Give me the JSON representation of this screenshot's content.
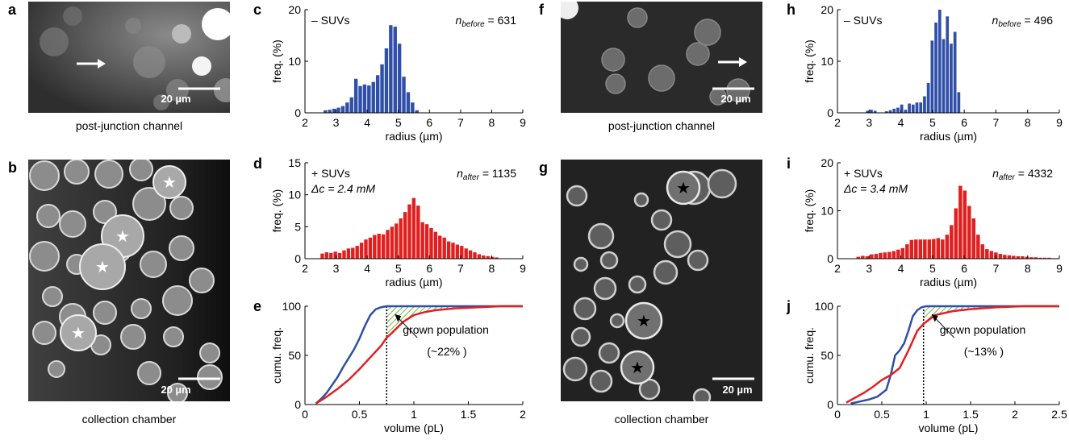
{
  "panel_letters": {
    "a": "a",
    "b": "b",
    "c": "c",
    "d": "d",
    "e": "e",
    "f": "f",
    "g": "g",
    "h": "h",
    "i": "i",
    "j": "j"
  },
  "captions": {
    "a": "post-junction channel",
    "b": "collection chamber",
    "f": "post-junction channel",
    "g": "collection chamber"
  },
  "scale_bar_label": "20 µm",
  "colors": {
    "blue": "#2f4fa8",
    "red": "#e02020",
    "hatch": "#7ab648"
  },
  "chart_data": [
    {
      "panel": "c",
      "type": "bar",
      "annot_left": "– SUVs",
      "annot_right_n": "n",
      "annot_right_sub": "before",
      "annot_right_val": " = 631",
      "xlabel": "radius (µm)",
      "ylabel": "freq. (%)",
      "xlim": [
        2,
        9
      ],
      "ylim": [
        0,
        20
      ],
      "xticks": [
        2,
        3,
        4,
        5,
        6,
        7,
        8,
        9
      ],
      "yticks": [
        0,
        10,
        20
      ],
      "bin_width": 0.14,
      "color": "#2f4fa8",
      "x": [
        2.6,
        2.74,
        2.88,
        3.02,
        3.16,
        3.3,
        3.44,
        3.58,
        3.72,
        3.86,
        4.0,
        4.14,
        4.28,
        4.42,
        4.56,
        4.7,
        4.84,
        4.98,
        5.12,
        5.26,
        5.4,
        5.54
      ],
      "values": [
        0.5,
        0.6,
        0.8,
        1.0,
        1.3,
        2.0,
        3.0,
        6.6,
        5.2,
        5.5,
        5.3,
        6.0,
        7.3,
        9.4,
        12.5,
        17.0,
        16.7,
        13.4,
        7.0,
        4.0,
        2.0,
        0.5
      ]
    },
    {
      "panel": "d",
      "type": "bar",
      "annot_left": "+ SUVs",
      "annot_left2": "Δc = 2.4 mM",
      "annot_right_n": "n",
      "annot_right_sub": "after",
      "annot_right_val": " = 1135",
      "xlabel": "radius (µm)",
      "ylabel": "freq. (%)",
      "xlim": [
        2,
        9
      ],
      "ylim": [
        0,
        15
      ],
      "xticks": [
        2,
        3,
        4,
        5,
        6,
        7,
        8,
        9
      ],
      "yticks": [
        0,
        5,
        10,
        15
      ],
      "bin_width": 0.14,
      "color": "#e02020",
      "x": [
        2.5,
        2.64,
        2.78,
        2.92,
        3.06,
        3.2,
        3.34,
        3.48,
        3.62,
        3.76,
        3.9,
        4.04,
        4.18,
        4.32,
        4.46,
        4.6,
        4.74,
        4.88,
        5.02,
        5.16,
        5.3,
        5.44,
        5.58,
        5.72,
        5.86,
        6.0,
        6.14,
        6.28,
        6.42,
        6.56,
        6.7,
        6.84,
        6.98,
        7.12,
        7.26,
        7.4,
        7.54,
        7.68,
        7.82,
        7.96,
        8.1
      ],
      "values": [
        0.8,
        1.0,
        0.9,
        1.1,
        0.9,
        1.3,
        1.6,
        1.7,
        2.0,
        2.5,
        3.0,
        3.3,
        3.7,
        3.9,
        3.8,
        4.5,
        5.0,
        5.5,
        6.3,
        7.3,
        8.5,
        9.5,
        8.3,
        5.7,
        5.4,
        4.8,
        4.2,
        3.6,
        3.3,
        2.7,
        2.5,
        2.2,
        2.0,
        1.6,
        1.3,
        1.0,
        0.7,
        0.5,
        0.4,
        0.3,
        0.2
      ]
    },
    {
      "panel": "e",
      "type": "line",
      "ylabel": "cumu. freq.",
      "xlabel": "volume (pL)",
      "xlim": [
        0,
        2
      ],
      "ylim": [
        0,
        100
      ],
      "xticks": [
        0,
        0.5,
        1,
        1.5,
        2
      ],
      "xticklabels": [
        "0",
        "0.5",
        "1",
        "1.5",
        "2"
      ],
      "yticks": [
        0,
        50,
        100
      ],
      "annotation": "grown population",
      "annotation2": "(~22% )",
      "dotted_x": 0.75,
      "series": [
        {
          "color": "#2f4fa8",
          "x": [
            0.1,
            0.15,
            0.2,
            0.25,
            0.3,
            0.35,
            0.4,
            0.45,
            0.5,
            0.55,
            0.6,
            0.65,
            0.7,
            0.75,
            0.8,
            2.0
          ],
          "y": [
            1,
            6,
            12,
            20,
            28,
            38,
            47,
            56,
            67,
            80,
            91,
            97,
            99,
            100,
            100,
            100
          ]
        },
        {
          "color": "#e02020",
          "x": [
            0.1,
            0.2,
            0.3,
            0.4,
            0.5,
            0.6,
            0.7,
            0.75,
            0.8,
            0.9,
            1.0,
            1.1,
            1.2,
            1.4,
            1.6,
            1.8,
            2.0
          ],
          "y": [
            1,
            8,
            16,
            25,
            36,
            48,
            60,
            68,
            73,
            84,
            91,
            94,
            96,
            98,
            99,
            100,
            100
          ]
        }
      ]
    },
    {
      "panel": "h",
      "type": "bar",
      "annot_left": "– SUVs",
      "annot_right_n": "n",
      "annot_right_sub": "before",
      "annot_right_val": " = 496",
      "xlabel": "radius (µm)",
      "ylabel": "freq. (%)",
      "xlim": [
        2,
        9
      ],
      "ylim": [
        0,
        20
      ],
      "xticks": [
        2,
        3,
        4,
        5,
        6,
        7,
        8,
        9
      ],
      "yticks": [
        0,
        10,
        20
      ],
      "bin_width": 0.12,
      "color": "#2f4fa8",
      "x": [
        2.9,
        3.02,
        3.14,
        3.5,
        3.62,
        3.74,
        3.86,
        3.98,
        4.1,
        4.22,
        4.34,
        4.46,
        4.58,
        4.7,
        4.82,
        4.94,
        5.06,
        5.18,
        5.3,
        5.42,
        5.54,
        5.66,
        5.78
      ],
      "values": [
        0.4,
        0.6,
        0.4,
        0.3,
        0.5,
        0.8,
        1.0,
        1.6,
        0.6,
        1.8,
        1.6,
        2.0,
        2.0,
        3.2,
        5.8,
        14.0,
        17.5,
        20.0,
        14.3,
        18.7,
        13.4,
        15.7,
        4.0
      ]
    },
    {
      "panel": "i",
      "type": "bar",
      "annot_left": "+ SUVs",
      "annot_left2": "Δc = 3.4 mM",
      "annot_right_n": "n",
      "annot_right_sub": "after",
      "annot_right_val": " = 4332",
      "xlabel": "radius (µm)",
      "ylabel": "freq. (%)",
      "xlim": [
        2,
        9
      ],
      "ylim": [
        0,
        20
      ],
      "xticks": [
        2,
        3,
        4,
        5,
        6,
        7,
        8,
        9
      ],
      "yticks": [
        0,
        10,
        20
      ],
      "bin_width": 0.14,
      "color": "#e02020",
      "x": [
        2.6,
        2.74,
        2.88,
        3.02,
        3.16,
        3.3,
        3.44,
        3.58,
        3.72,
        3.86,
        4.0,
        4.14,
        4.28,
        4.42,
        4.56,
        4.7,
        4.84,
        4.98,
        5.12,
        5.26,
        5.4,
        5.54,
        5.68,
        5.82,
        5.96,
        6.1,
        6.24,
        6.38,
        6.52,
        6.66,
        6.8,
        6.94,
        7.08,
        7.22,
        7.36,
        7.5,
        7.64,
        7.78,
        7.92,
        8.06,
        8.2,
        8.34,
        8.48,
        8.62,
        8.76
      ],
      "values": [
        0.4,
        0.6,
        0.5,
        0.9,
        1.0,
        1.2,
        1.3,
        1.4,
        1.6,
        1.9,
        2.2,
        3.0,
        3.9,
        4.0,
        4.0,
        4.0,
        4.0,
        4.1,
        4.3,
        4.0,
        5.0,
        7.0,
        10.5,
        15.2,
        14.2,
        11.0,
        8.4,
        5.0,
        3.0,
        2.0,
        1.6,
        1.3,
        1.0,
        0.8,
        0.7,
        0.6,
        0.5,
        0.5,
        0.4,
        0.3,
        0.3,
        0.2,
        0.2,
        0.2,
        0.1
      ]
    },
    {
      "panel": "j",
      "type": "line",
      "ylabel": "cumu. freq.",
      "xlabel": "volume (pL)",
      "xlim": [
        0,
        2.5
      ],
      "ylim": [
        0,
        100
      ],
      "xticks": [
        0,
        0.5,
        1,
        1.5,
        2,
        2.5
      ],
      "xticklabels": [
        "0",
        "0.5",
        "1",
        "1.5",
        "2",
        "2.5"
      ],
      "yticks": [
        0,
        50,
        100
      ],
      "annotation": "grown population",
      "annotation2": "(~13% )",
      "dotted_x": 0.97,
      "series": [
        {
          "color": "#2f4fa8",
          "x": [
            0.15,
            0.25,
            0.35,
            0.45,
            0.55,
            0.6,
            0.65,
            0.7,
            0.75,
            0.8,
            0.85,
            0.9,
            0.95,
            1.0,
            2.5
          ],
          "y": [
            1,
            3,
            5,
            8,
            15,
            30,
            50,
            55,
            62,
            75,
            90,
            96,
            99,
            100,
            100
          ]
        },
        {
          "color": "#e02020",
          "x": [
            0.1,
            0.2,
            0.3,
            0.4,
            0.5,
            0.6,
            0.7,
            0.8,
            0.9,
            0.97,
            1.1,
            1.3,
            1.5,
            1.8,
            2.1,
            2.5
          ],
          "y": [
            2,
            7,
            12,
            18,
            25,
            30,
            37,
            55,
            75,
            82,
            91,
            95,
            97,
            99,
            100,
            100
          ]
        }
      ]
    }
  ]
}
